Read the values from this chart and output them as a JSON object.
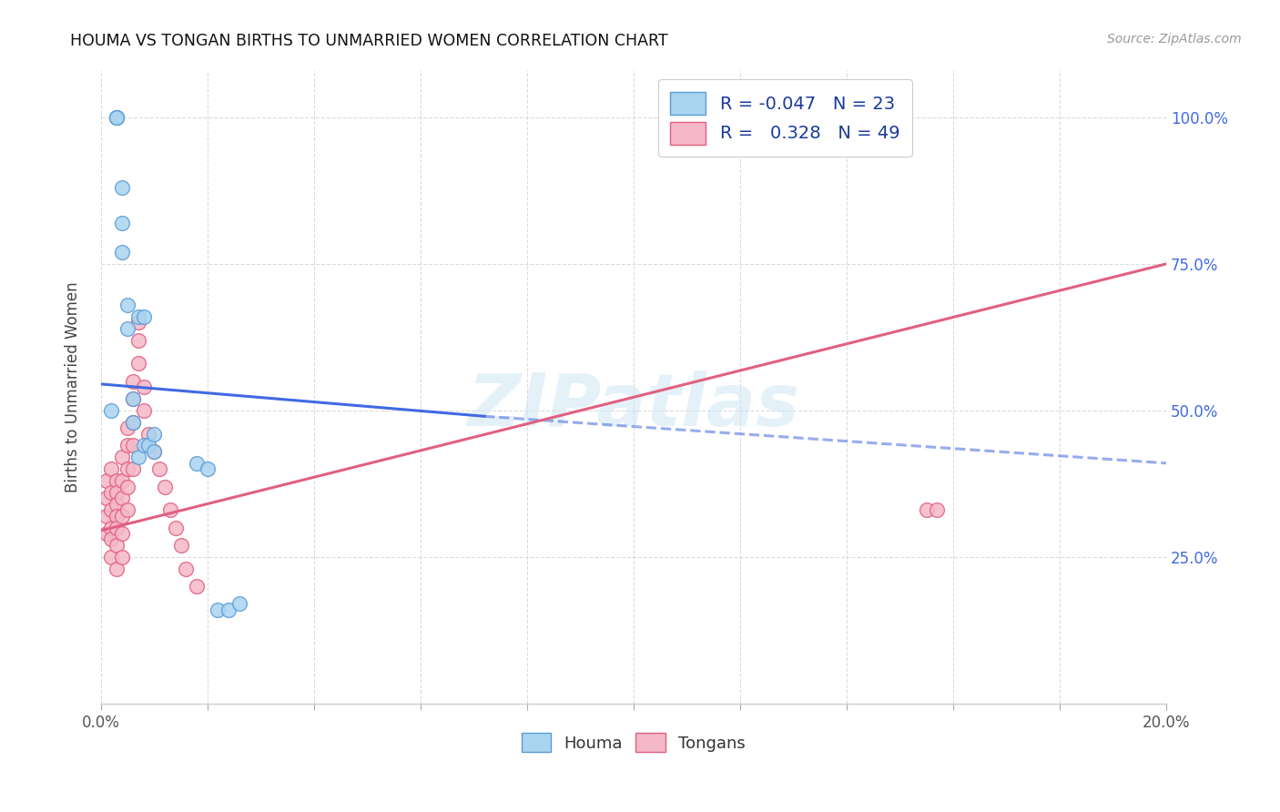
{
  "title": "HOUMA VS TONGAN BIRTHS TO UNMARRIED WOMEN CORRELATION CHART",
  "source": "Source: ZipAtlas.com",
  "ylabel": "Births to Unmarried Women",
  "yticks_labels": [
    "25.0%",
    "50.0%",
    "75.0%",
    "100.0%"
  ],
  "ytick_vals": [
    0.25,
    0.5,
    0.75,
    1.0
  ],
  "xlim": [
    0.0,
    0.2
  ],
  "ylim": [
    0.0,
    1.08
  ],
  "legend_r_houma": "-0.047",
  "legend_n_houma": "23",
  "legend_r_tongans": "0.328",
  "legend_n_tongans": "49",
  "houma_color": "#a8d4f0",
  "tongans_color": "#f5b8c8",
  "houma_edge": "#5b9bd5",
  "tongans_edge": "#e06080",
  "trendline_houma_color": "#4169E1",
  "trendline_tongans_color": "#e06080",
  "watermark": "ZIPatlas",
  "trendline_houma_x0": 0.0,
  "trendline_houma_y0": 0.545,
  "trendline_houma_x1": 0.072,
  "trendline_houma_y1": 0.49,
  "trendline_houma_xdash_x0": 0.072,
  "trendline_houma_xdash_y0": 0.49,
  "trendline_houma_xdash_x1": 0.2,
  "trendline_houma_xdash_y1": 0.41,
  "trendline_tongans_x0": 0.0,
  "trendline_tongans_y0": 0.295,
  "trendline_tongans_x1": 0.2,
  "trendline_tongans_y1": 0.75,
  "houma_x": [
    0.002,
    0.003,
    0.003,
    0.003,
    0.004,
    0.004,
    0.004,
    0.005,
    0.005,
    0.006,
    0.006,
    0.007,
    0.007,
    0.008,
    0.008,
    0.009,
    0.01,
    0.01,
    0.018,
    0.02,
    0.022,
    0.024,
    0.026
  ],
  "houma_y": [
    0.5,
    1.0,
    1.0,
    1.0,
    0.88,
    0.82,
    0.77,
    0.68,
    0.64,
    0.52,
    0.48,
    0.66,
    0.42,
    0.44,
    0.66,
    0.44,
    0.46,
    0.43,
    0.41,
    0.4,
    0.16,
    0.16,
    0.17
  ],
  "tongans_x": [
    0.001,
    0.001,
    0.001,
    0.001,
    0.002,
    0.002,
    0.002,
    0.002,
    0.002,
    0.002,
    0.003,
    0.003,
    0.003,
    0.003,
    0.003,
    0.003,
    0.003,
    0.004,
    0.004,
    0.004,
    0.004,
    0.004,
    0.004,
    0.005,
    0.005,
    0.005,
    0.005,
    0.005,
    0.006,
    0.006,
    0.006,
    0.006,
    0.006,
    0.007,
    0.007,
    0.007,
    0.008,
    0.008,
    0.009,
    0.01,
    0.011,
    0.012,
    0.013,
    0.014,
    0.015,
    0.016,
    0.018,
    0.155,
    0.157
  ],
  "tongans_y": [
    0.38,
    0.35,
    0.32,
    0.29,
    0.4,
    0.36,
    0.33,
    0.3,
    0.28,
    0.25,
    0.38,
    0.36,
    0.34,
    0.32,
    0.3,
    0.27,
    0.23,
    0.42,
    0.38,
    0.35,
    0.32,
    0.29,
    0.25,
    0.47,
    0.44,
    0.4,
    0.37,
    0.33,
    0.55,
    0.52,
    0.48,
    0.44,
    0.4,
    0.65,
    0.62,
    0.58,
    0.54,
    0.5,
    0.46,
    0.43,
    0.4,
    0.37,
    0.33,
    0.3,
    0.27,
    0.23,
    0.2,
    0.33,
    0.33
  ],
  "xtick_positions": [
    0.0,
    0.02,
    0.04,
    0.06,
    0.08,
    0.1,
    0.12,
    0.14,
    0.16,
    0.18,
    0.2
  ],
  "background_color": "#ffffff",
  "grid_color": "#cccccc"
}
